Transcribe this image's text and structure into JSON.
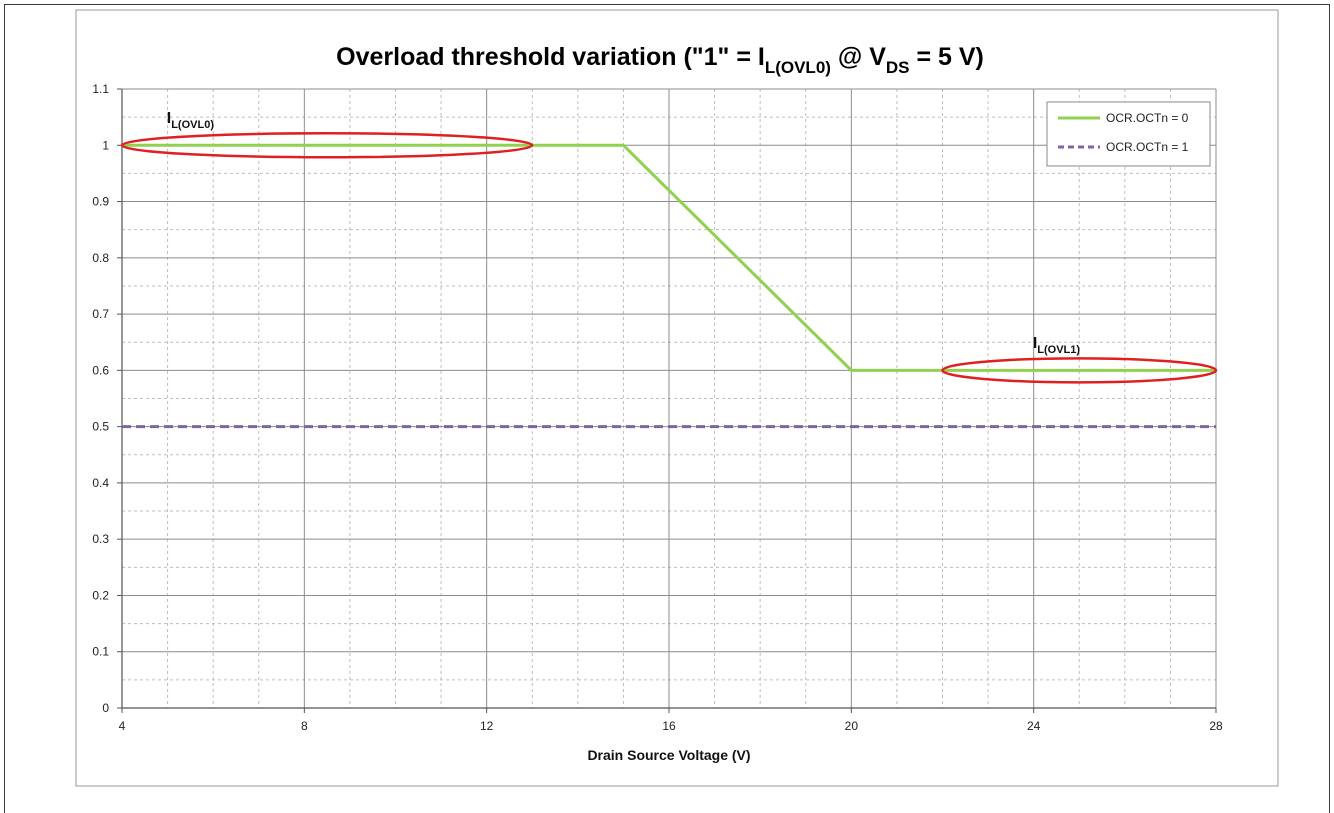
{
  "chart_data": {
    "type": "line",
    "title": {
      "main": "Overload threshold variation (\"1\" = I",
      "sub1": "L(OVL0)",
      "mid": " @ V",
      "sub2": "DS",
      "end": " = 5 V)"
    },
    "xlabel": "Drain Source Voltage (V)",
    "ylabel": "",
    "xlim": [
      4,
      28
    ],
    "ylim": [
      0,
      1.1
    ],
    "x_ticks": [
      4,
      8,
      12,
      16,
      20,
      24,
      28
    ],
    "x_tick_labels": [
      "4",
      "8",
      "12",
      "16",
      "20",
      "24",
      "28"
    ],
    "y_ticks": [
      0,
      0.1,
      0.2,
      0.3,
      0.4,
      0.5,
      0.6,
      0.7,
      0.8,
      0.9,
      1,
      1.1
    ],
    "y_tick_labels": [
      "0",
      "0.1",
      "0.2",
      "0.3",
      "0.4",
      "0.5",
      "0.6",
      "0.7",
      "0.8",
      "0.9",
      "1",
      "1.1"
    ],
    "x_minor_step": 1,
    "y_minor_step": 0.05,
    "grid": true,
    "legend_position": "top-right",
    "series": [
      {
        "name": "OCR.OCTn = 0",
        "color": "#92d050",
        "style": "solid",
        "x": [
          4,
          15,
          20,
          28
        ],
        "y": [
          1,
          1,
          0.6,
          0.6
        ]
      },
      {
        "name": "OCR.OCTn = 1",
        "color": "#8064a2",
        "style": "dashed",
        "x": [
          4,
          28
        ],
        "y": [
          0.5,
          0.5
        ]
      }
    ],
    "annotations": [
      {
        "main": "I",
        "sub": "L(OVL0)",
        "x": 5.5,
        "y": 1.04
      },
      {
        "main": "I",
        "sub": "L(OVL1)",
        "x": 24.5,
        "y": 0.64
      }
    ],
    "highlight_ellipses": [
      {
        "color": "#e02020",
        "x_range": [
          4,
          13
        ],
        "y": 1
      },
      {
        "color": "#e02020",
        "x_range": [
          22,
          28
        ],
        "y": 0.6
      }
    ]
  }
}
